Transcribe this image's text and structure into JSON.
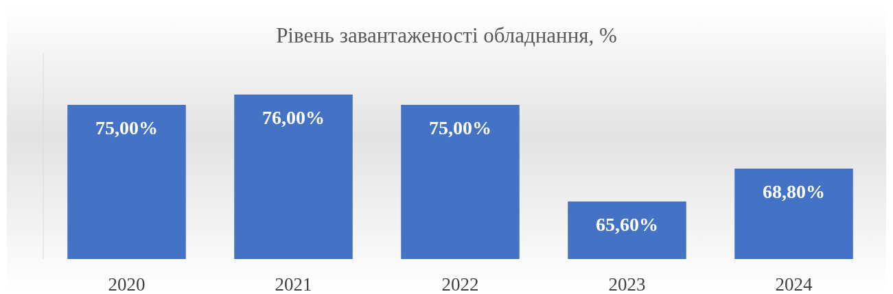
{
  "chart_data": {
    "type": "bar",
    "title": "Рівень завантаженості обладнання, %",
    "categories": [
      "2020",
      "2021",
      "2022",
      "2023",
      "2024"
    ],
    "values": [
      75,
      76,
      75,
      65.6,
      68.8
    ],
    "value_labels": [
      "75,00%",
      "76,00%",
      "75,00%",
      "65,60%",
      "68,80%"
    ],
    "color": "#4472c4",
    "ylim": [
      60,
      80
    ],
    "tick_labels": "x"
  }
}
